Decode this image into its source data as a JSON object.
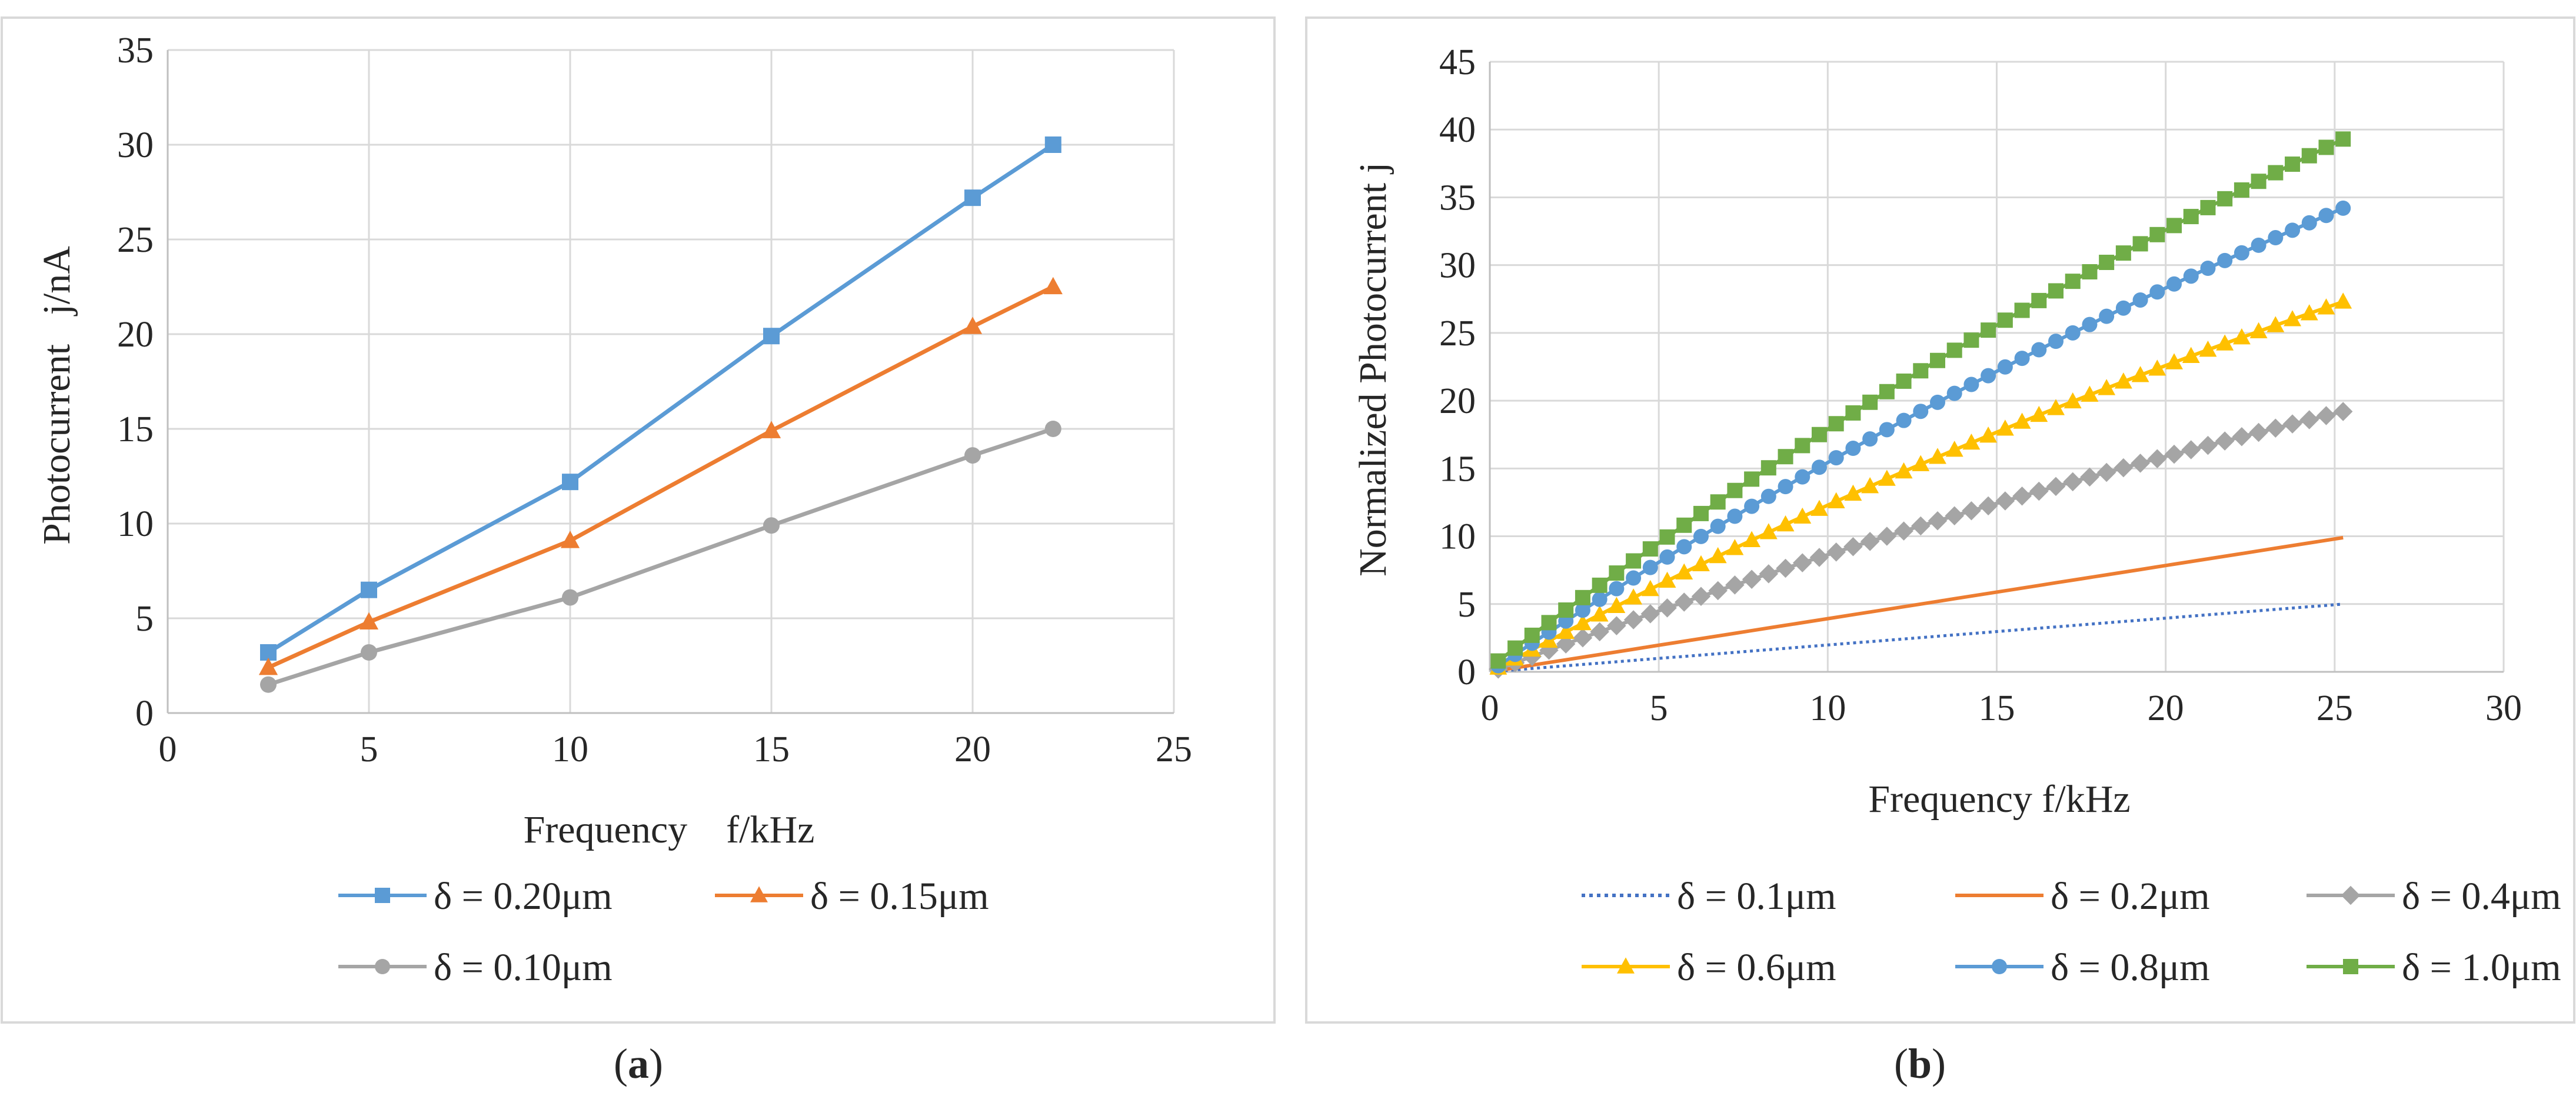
{
  "figure": {
    "panels": [
      {
        "caption_open": "(",
        "caption_letter": "a",
        "caption_close": ")"
      },
      {
        "caption_open": "(",
        "caption_letter": "b",
        "caption_close": ")"
      }
    ]
  },
  "chart_data": [
    {
      "type": "line",
      "title": "",
      "xlabel": "Frequency    f/kHz",
      "ylabel": "Photocurrent   j/nA",
      "xlim": [
        0,
        25
      ],
      "ylim": [
        0,
        35
      ],
      "xticks": [
        0,
        5,
        10,
        15,
        20,
        25
      ],
      "yticks": [
        0,
        5,
        10,
        15,
        20,
        25,
        30,
        35
      ],
      "grid": true,
      "legend_position": "bottom",
      "series": [
        {
          "name": "δ = 0.20μm",
          "color": "#5b9bd5",
          "marker": "square",
          "x": [
            2.5,
            5,
            10,
            15,
            20,
            22
          ],
          "y": [
            3.2,
            6.5,
            12.2,
            19.9,
            27.2,
            30.0
          ]
        },
        {
          "name": "δ = 0.15μm",
          "color": "#ed7d31",
          "marker": "triangle",
          "x": [
            2.5,
            5,
            10,
            15,
            20,
            22
          ],
          "y": [
            2.4,
            4.8,
            9.1,
            14.9,
            20.4,
            22.5
          ]
        },
        {
          "name": "δ = 0.10μm",
          "color": "#a5a5a5",
          "marker": "circle",
          "x": [
            2.5,
            5,
            10,
            15,
            20,
            22
          ],
          "y": [
            1.5,
            3.2,
            6.1,
            9.9,
            13.6,
            15.0
          ]
        }
      ]
    },
    {
      "type": "line",
      "title": "",
      "xlabel": "Frequency f/kHz",
      "ylabel": "Normalized Photocurrent j",
      "xlim": [
        0,
        30
      ],
      "ylim": [
        0,
        45
      ],
      "xticks": [
        0,
        5,
        10,
        15,
        20,
        25,
        30
      ],
      "yticks": [
        0,
        5,
        10,
        15,
        20,
        25,
        30,
        35,
        40,
        45
      ],
      "grid": true,
      "legend_position": "bottom",
      "x_start": 0.25,
      "x_end": 25.25,
      "x_count": 51,
      "series": [
        {
          "name": "δ = 0.1μm",
          "color": "#4472c4",
          "style": "dotted",
          "marker": "none",
          "y_start": 0.05,
          "y_end": 5.0
        },
        {
          "name": "δ = 0.2μm",
          "color": "#ed7d31",
          "style": "solid",
          "marker": "none",
          "y_start": 0.1,
          "y_end": 9.9
        },
        {
          "name": "δ = 0.4μm",
          "color": "#a5a5a5",
          "style": "solid",
          "marker": "diamond",
          "y_start": 0.2,
          "y_end": 19.2
        },
        {
          "name": "δ = 0.6μm",
          "color": "#ffc000",
          "style": "solid",
          "marker": "triangle",
          "y_start": 0.3,
          "y_end": 27.3
        },
        {
          "name": "δ = 0.8μm",
          "color": "#5b9bd5",
          "style": "solid",
          "marker": "circle",
          "y_start": 0.45,
          "y_end": 34.2
        },
        {
          "name": "δ = 1.0μm",
          "color": "#70ad47",
          "style": "solid",
          "marker": "square",
          "y_start": 0.8,
          "y_end": 39.3
        }
      ]
    }
  ]
}
